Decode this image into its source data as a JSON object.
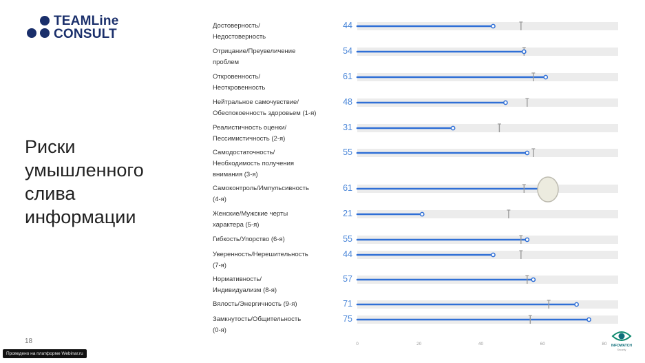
{
  "logo": {
    "line1": "TEAMLine",
    "line2": "CONSULT"
  },
  "slide": {
    "title": "Риски умышленного слива информации",
    "page_number": "18"
  },
  "footer": {
    "webinar": "Проведено на платформе Webinar.ru"
  },
  "brand": {
    "name": "INFOWATCH",
    "tagline": "Security"
  },
  "colors": {
    "accent": "#2f6fd6",
    "track": "#ececec",
    "norm_mark": "#9a9a9a",
    "logo": "#1a2f6b"
  },
  "chart_data": {
    "type": "bar",
    "orientation": "horizontal",
    "xlim": [
      0,
      80
    ],
    "x_ticks": [
      "0",
      "20",
      "40",
      "60",
      "80"
    ],
    "categories": [
      [
        "Достоверность/",
        "Недостоверность"
      ],
      [
        "Отрицание/Преувеличение",
        "проблем"
      ],
      [
        "Откровенность/",
        "Неоткровенность"
      ],
      [
        "Нейтральное самочувствие/",
        "Обеспокоенность здоровьем (1-я)"
      ],
      [
        "Реалистичность оценки/",
        "Пессимистичность (2-я)"
      ],
      [
        "Самодостаточность/",
        "Необходимость получения",
        "внимания (3-я)"
      ],
      [
        "Самоконтроль/Импульсивность",
        "(4-я)"
      ],
      [
        "Женские/Мужские черты",
        "характера (5-я)"
      ],
      [
        "Гибкость/Упорство (6-я)"
      ],
      [
        "Уверенность/Нерешительность",
        "(7-я)"
      ],
      [
        "Нормативность/",
        "Индивидуализм (8-я)"
      ],
      [
        "Вялость/Энергичность (9-я)"
      ],
      [
        "Замкнутость/Общительность",
        "(0-я)"
      ]
    ],
    "values": [
      44,
      54,
      61,
      48,
      31,
      55,
      61,
      21,
      55,
      44,
      57,
      71,
      75
    ],
    "value_labels": [
      "44",
      "54",
      "61",
      "48",
      "31",
      "55",
      "61",
      "21",
      "55",
      "44",
      "57",
      "71",
      "75"
    ],
    "norm_markers": [
      53,
      54,
      57,
      55,
      46,
      57,
      54,
      49,
      53,
      53,
      55,
      62,
      56
    ]
  }
}
